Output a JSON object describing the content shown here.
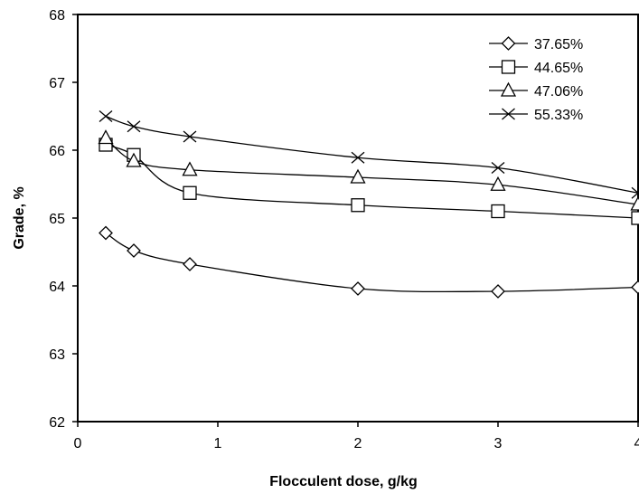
{
  "chart_data": {
    "type": "line",
    "title": "",
    "xlabel": "Flocculent dose, g/kg",
    "ylabel": "Grade, %",
    "xlim": [
      0,
      4
    ],
    "ylim": [
      62,
      68
    ],
    "x_ticks": [
      "0",
      "1",
      "2",
      "3",
      "4"
    ],
    "y_ticks": [
      "62",
      "63",
      "64",
      "65",
      "66",
      "67",
      "68"
    ],
    "grid": false,
    "legend_position": "top-right",
    "x": [
      0.2,
      0.4,
      0.8,
      2,
      3,
      4
    ],
    "series": [
      {
        "name": "37.65%",
        "marker": "diamond",
        "values": [
          64.78,
          64.52,
          64.32,
          63.96,
          63.92,
          63.98
        ]
      },
      {
        "name": "44.65%",
        "marker": "square",
        "values": [
          66.08,
          65.93,
          65.37,
          65.19,
          65.1,
          65.0
        ]
      },
      {
        "name": "47.06%",
        "marker": "triangle",
        "values": [
          66.18,
          65.84,
          65.71,
          65.6,
          65.49,
          65.2
        ]
      },
      {
        "name": "55.33%",
        "marker": "x",
        "values": [
          66.5,
          66.35,
          66.2,
          65.89,
          65.74,
          65.37
        ]
      }
    ]
  }
}
